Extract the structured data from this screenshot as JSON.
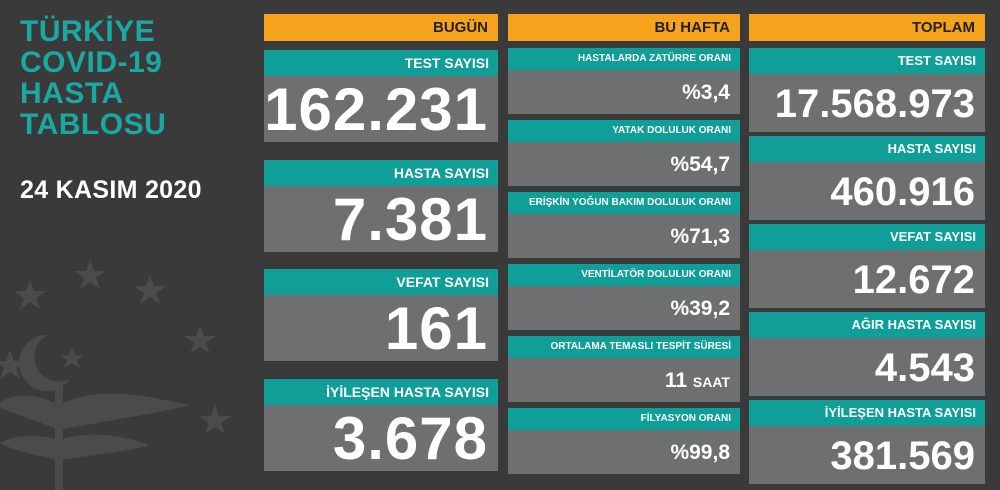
{
  "title": {
    "line1": "TÜRKİYE",
    "line2": "COVID-19",
    "line3": "HASTA",
    "line4": "TABLOSU"
  },
  "date": "24 KASIM 2020",
  "colors": {
    "orange": "#f5a21c",
    "teal": "#0f9e98",
    "gray": "#6e6f71",
    "background": "#3a3a3b",
    "title": "#1aa8a3"
  },
  "today": {
    "header": "BUGÜN",
    "cards": [
      {
        "label": "TEST SAYISI",
        "value": "162.231"
      },
      {
        "label": "HASTA SAYISI",
        "value": "7.381"
      },
      {
        "label": "VEFAT SAYISI",
        "value": "161"
      },
      {
        "label": "İYİLEŞEN HASTA SAYISI",
        "value": "3.678"
      }
    ]
  },
  "week": {
    "header": "BU HAFTA",
    "cards": [
      {
        "label": "HASTALARDA ZATÜRRE ORANI",
        "value": "%3,4"
      },
      {
        "label": "YATAK DOLULUK ORANI",
        "value": "%54,7"
      },
      {
        "label": "ERİŞKİN YOĞUN BAKIM DOLULUK ORANI",
        "value": "%71,3"
      },
      {
        "label": "VENTİLATÖR DOLULUK ORANI",
        "value": "%39,2"
      },
      {
        "label": "ORTALAMA TEMASLI TESPİT SÜRESİ",
        "value": "11",
        "unit": "SAAT"
      },
      {
        "label": "FİLYASYON ORANI",
        "value": "%99,8"
      }
    ]
  },
  "total": {
    "header": "TOPLAM",
    "cards": [
      {
        "label": "TEST SAYISI",
        "value": "17.568.973"
      },
      {
        "label": "HASTA SAYISI",
        "value": "460.916"
      },
      {
        "label": "VEFAT SAYISI",
        "value": "12.672"
      },
      {
        "label": "AĞIR HASTA SAYISI",
        "value": "4.543"
      },
      {
        "label": "İYİLEŞEN HASTA SAYISI",
        "value": "381.569"
      }
    ]
  },
  "icons": {
    "emblem": "ministry-emblem-icon"
  }
}
